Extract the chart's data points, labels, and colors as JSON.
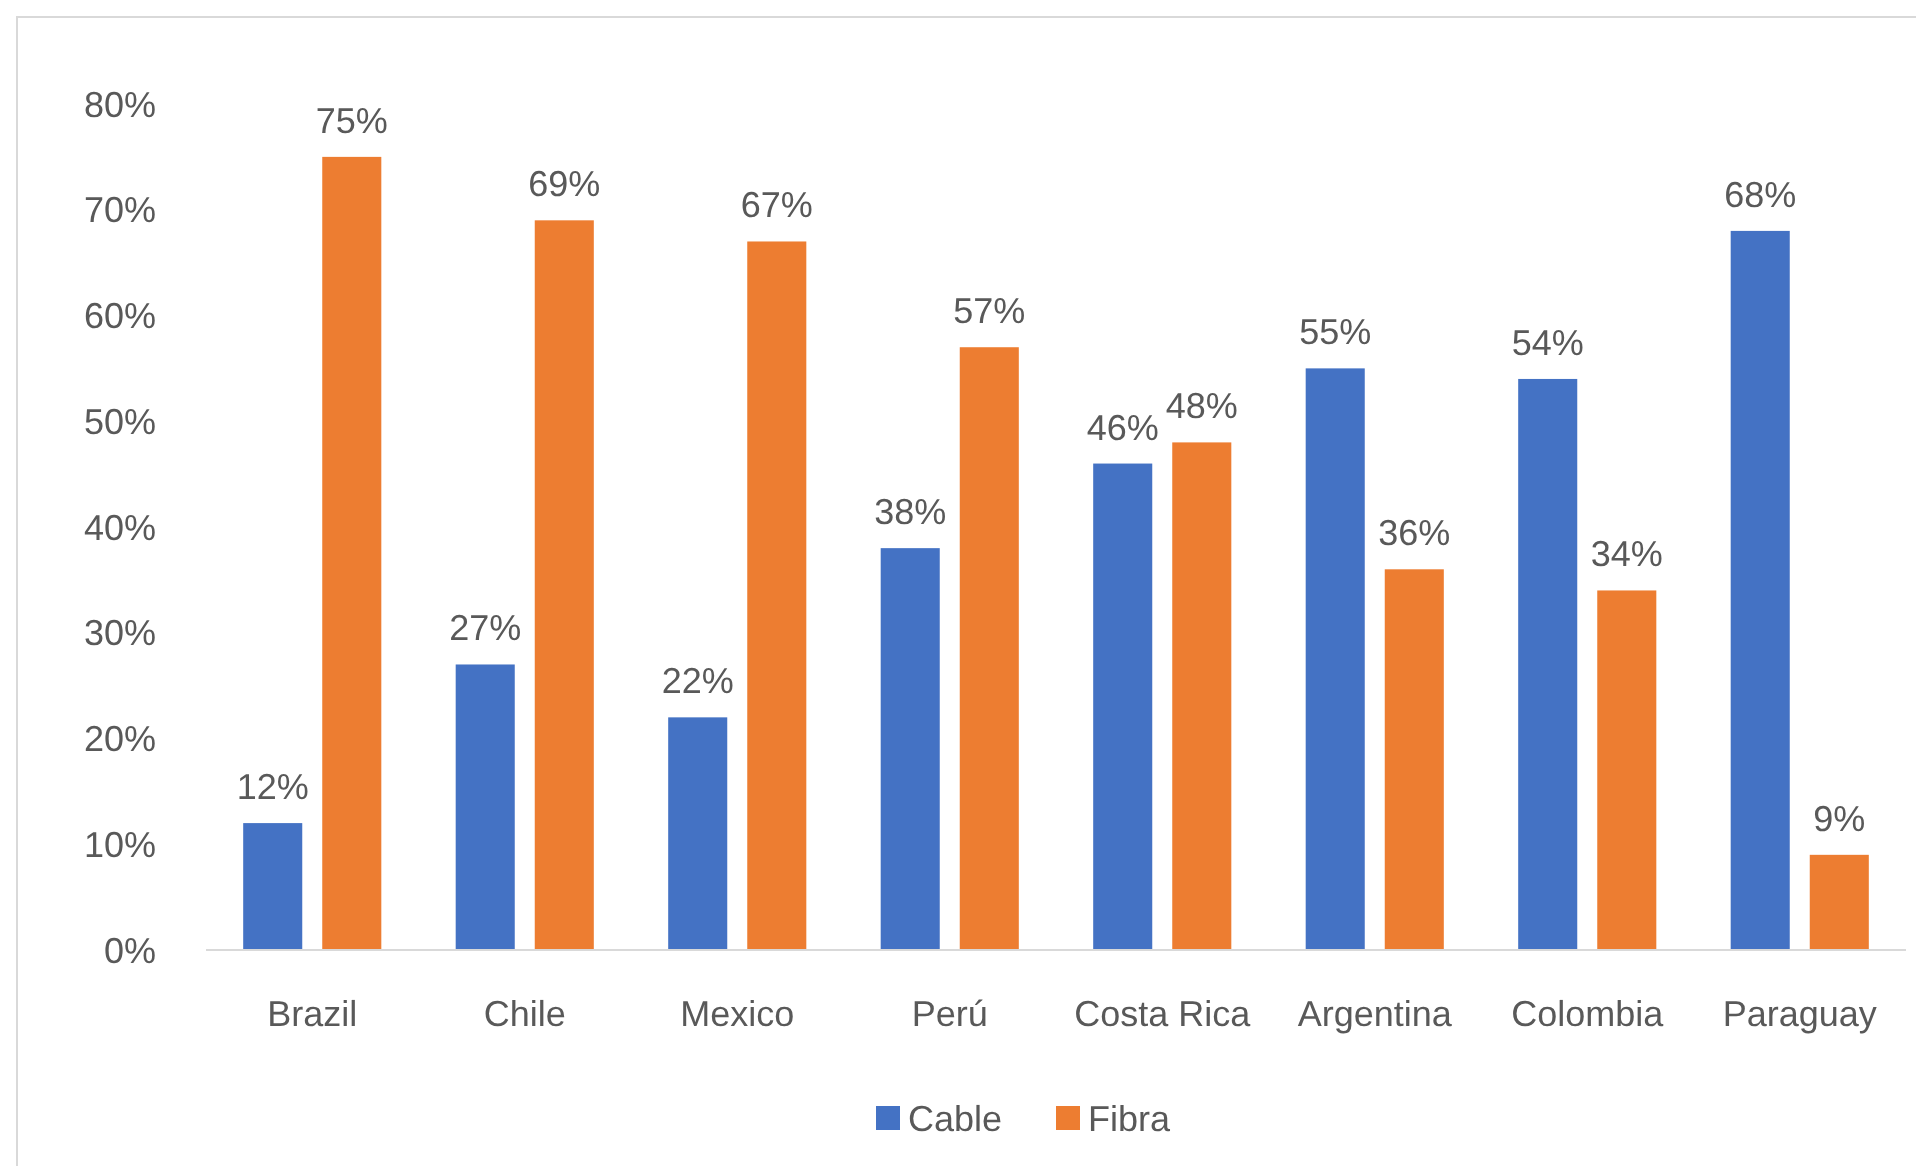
{
  "chart_data": {
    "type": "bar",
    "categories": [
      "Brazil",
      "Chile",
      "Mexico",
      "Perú",
      "Costa Rica",
      "Argentina",
      "Colombia",
      "Paraguay"
    ],
    "series": [
      {
        "name": "Cable",
        "color": "#4472c4",
        "values": [
          12,
          27,
          22,
          38,
          46,
          55,
          54,
          68
        ],
        "value_labels": [
          "12%",
          "27%",
          "22%",
          "38%",
          "46%",
          "55%",
          "54%",
          "68%"
        ]
      },
      {
        "name": "Fibra",
        "color": "#ed7d31",
        "values": [
          75,
          69,
          67,
          57,
          48,
          36,
          34,
          9
        ],
        "value_labels": [
          "75%",
          "69%",
          "67%",
          "57%",
          "48%",
          "36%",
          "34%",
          "9%"
        ]
      }
    ],
    "ylim": [
      0,
      80
    ],
    "yticks": [
      {
        "value": 0,
        "label": "0%"
      },
      {
        "value": 10,
        "label": "10%"
      },
      {
        "value": 20,
        "label": "20%"
      },
      {
        "value": 30,
        "label": "30%"
      },
      {
        "value": 40,
        "label": "40%"
      },
      {
        "value": 50,
        "label": "50%"
      },
      {
        "value": 60,
        "label": "60%"
      },
      {
        "value": 70,
        "label": "70%"
      },
      {
        "value": 80,
        "label": "80%"
      }
    ],
    "grid": false,
    "legend": "bottom"
  }
}
